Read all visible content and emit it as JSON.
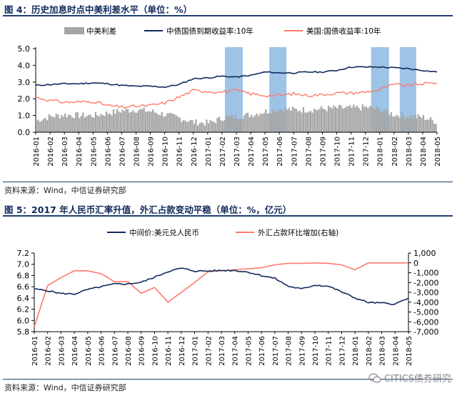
{
  "figure4": {
    "title": "图 4：历史加息时点中美利差水平（单位：%）",
    "source": "资料来源：Wind，中信证券研究部"
  },
  "figure5": {
    "title": "图 5：2017 年人民币汇率升值，外汇占款变动平稳（单位：%，亿元）",
    "source": "资料来源：Wind，中信证券研究部"
  },
  "watermark": {
    "text": "CITICS债券研究",
    "icon": "wechat-icon"
  },
  "colors": {
    "navy": "#102a5c",
    "red": "#ff7a6e",
    "gray": "#a6a6a6",
    "blue_band": "#9dc3e6"
  },
  "chart_data": [
    {
      "type": "line",
      "title": "历史加息时点中美利差水平",
      "legend": [
        "中美利差",
        "中债国债到期收益率:10年",
        "美国:国债收益率:10年"
      ],
      "legend_position": "top",
      "categories": [
        "2016-01",
        "2016-02",
        "2016-03",
        "2016-04",
        "2016-05",
        "2016-06",
        "2016-07",
        "2016-08",
        "2016-09",
        "2016-10",
        "2016-11",
        "2016-12",
        "2017-01",
        "2017-02",
        "2017-03",
        "2017-04",
        "2017-05",
        "2017-06",
        "2017-07",
        "2017-08",
        "2017-09",
        "2017-10",
        "2017-11",
        "2017-12",
        "2018-01",
        "2018-02",
        "2018-03",
        "2018-04",
        "2018-05"
      ],
      "y_ticks": [
        "0.0",
        "1.0",
        "2.0",
        "3.0",
        "4.0",
        "5.0"
      ],
      "ylim": [
        0,
        5
      ],
      "rate_hike_periods": [
        [
          13.2,
          14.45
        ],
        [
          16.3,
          17.5
        ],
        [
          23.4,
          24.65
        ],
        [
          25.4,
          26.55
        ]
      ],
      "series": [
        {
          "name": "中美利差",
          "style": "bar",
          "color": "#a6a6a6",
          "values": [
            0.7,
            0.95,
            1.05,
            1.0,
            1.0,
            1.15,
            1.3,
            1.35,
            1.25,
            1.05,
            0.85,
            0.6,
            0.55,
            0.85,
            0.95,
            1.05,
            1.25,
            1.4,
            1.35,
            1.35,
            1.4,
            1.45,
            1.45,
            1.5,
            1.35,
            1.05,
            0.95,
            0.9,
            0.6
          ]
        },
        {
          "name": "中债国债到期收益率:10年",
          "style": "line",
          "color": "#102a5c",
          "values": [
            2.8,
            2.85,
            2.9,
            2.9,
            2.95,
            2.9,
            2.8,
            2.75,
            2.75,
            2.7,
            2.85,
            3.2,
            3.25,
            3.35,
            3.3,
            3.4,
            3.6,
            3.55,
            3.55,
            3.6,
            3.6,
            3.7,
            3.9,
            3.9,
            3.9,
            3.85,
            3.8,
            3.7,
            3.6
          ]
        },
        {
          "name": "美国:国债收益率:10年",
          "style": "line",
          "color": "#ff7a6e",
          "values": [
            2.1,
            1.9,
            1.8,
            1.8,
            1.85,
            1.6,
            1.5,
            1.55,
            1.6,
            1.75,
            2.1,
            2.5,
            2.45,
            2.4,
            2.5,
            2.3,
            2.2,
            2.2,
            2.3,
            2.2,
            2.25,
            2.35,
            2.35,
            2.4,
            2.55,
            2.85,
            2.8,
            2.9,
            2.95
          ]
        }
      ]
    },
    {
      "type": "line",
      "title": "人民币汇率与外汇占款变动",
      "legend": [
        "中间价:美元兑人民币",
        "外汇占款环比增加(右轴)"
      ],
      "legend_position": "top",
      "categories": [
        "2016-01",
        "2016-02",
        "2016-03",
        "2016-04",
        "2016-05",
        "2016-06",
        "2016-07",
        "2016-08",
        "2016-09",
        "2016-10",
        "2016-11",
        "2016-12",
        "2017-01",
        "2017-02",
        "2017-03",
        "2017-04",
        "2017-05",
        "2017-06",
        "2017-07",
        "2017-08",
        "2017-09",
        "2017-10",
        "2017-11",
        "2017-12",
        "2018-01",
        "2018-02",
        "2018-03",
        "2018-04",
        "2018-05"
      ],
      "y_left_ticks": [
        "5.8",
        "6.0",
        "6.2",
        "6.4",
        "6.6",
        "6.8",
        "7.0",
        "7.2"
      ],
      "y_right_ticks": [
        "1,000",
        "0",
        "-1,000",
        "-2,000",
        "-3,000",
        "-4,000",
        "-5,000",
        "-6,000",
        "-7,000"
      ],
      "ylim_left": [
        5.8,
        7.2
      ],
      "ylim_right": [
        -7000,
        1000
      ],
      "series": [
        {
          "name": "中间价:美元兑人民币",
          "axis": "left",
          "color": "#102a5c",
          "values": [
            6.56,
            6.53,
            6.48,
            6.47,
            6.55,
            6.6,
            6.65,
            6.65,
            6.68,
            6.77,
            6.87,
            6.93,
            6.88,
            6.88,
            6.89,
            6.89,
            6.86,
            6.8,
            6.75,
            6.61,
            6.56,
            6.63,
            6.61,
            6.51,
            6.4,
            6.32,
            6.31,
            6.29,
            6.4
          ]
        },
        {
          "name": "外汇占款环比增加(右轴)",
          "axis": "right",
          "color": "#ff7a6e",
          "values": [
            -6500,
            -2300,
            -1500,
            -800,
            -800,
            -1100,
            -1900,
            -1900,
            -3100,
            -2500,
            -4000,
            -3000,
            -2000,
            -900,
            -800,
            -700,
            -600,
            -500,
            -200,
            -50,
            -50,
            0,
            -50,
            -200,
            -700,
            0,
            0,
            0,
            0
          ]
        }
      ]
    }
  ]
}
